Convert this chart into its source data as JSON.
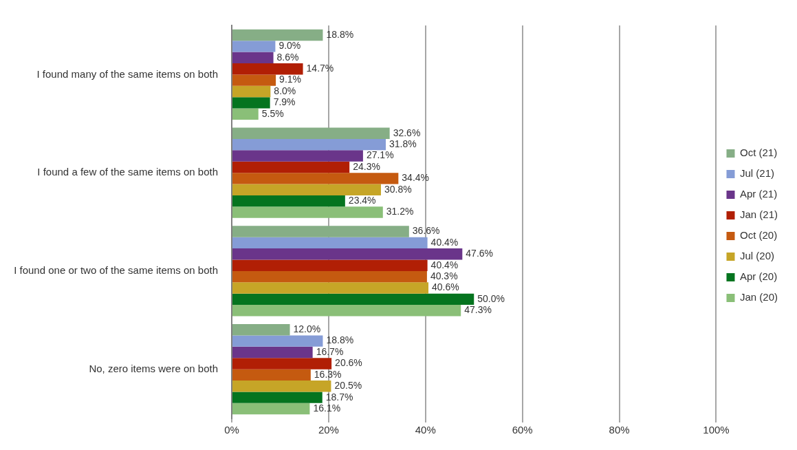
{
  "chart_data": {
    "type": "bar",
    "orientation": "horizontal",
    "categories": [
      "I found many of the same items on both",
      "I found a few of the same items on both",
      "I found one or two of the same items on both",
      "No, zero items were on both"
    ],
    "series": [
      {
        "name": "Oct (21)",
        "color": "#86ae86",
        "values": [
          18.8,
          32.6,
          36.6,
          12.0
        ],
        "value_labels": [
          "18.8%",
          "32.6%",
          "36.6%",
          "12.0%"
        ]
      },
      {
        "name": "Jul (21)",
        "color": "#859cd6",
        "values": [
          9.0,
          31.8,
          40.4,
          18.8
        ],
        "value_labels": [
          "9.0%",
          "31.8%",
          "40.4%",
          "18.8%"
        ]
      },
      {
        "name": "Apr (21)",
        "color": "#6a358a",
        "values": [
          8.6,
          27.1,
          47.6,
          16.7
        ],
        "value_labels": [
          "8.6%",
          "27.1%",
          "47.6%",
          "16.7%"
        ]
      },
      {
        "name": "Jan (21)",
        "color": "#b11f05",
        "values": [
          14.7,
          24.3,
          40.4,
          20.6
        ],
        "value_labels": [
          "14.7%",
          "24.3%",
          "40.4%",
          "20.6%"
        ]
      },
      {
        "name": "Oct (20)",
        "color": "#c55a10",
        "values": [
          9.1,
          34.4,
          40.3,
          16.3
        ],
        "value_labels": [
          "9.1%",
          "34.4%",
          "40.3%",
          "16.3%"
        ]
      },
      {
        "name": "Jul (20)",
        "color": "#c6a527",
        "values": [
          8.0,
          30.8,
          40.6,
          20.5
        ],
        "value_labels": [
          "8.0%",
          "30.8%",
          "40.6%",
          "20.5%"
        ]
      },
      {
        "name": "Apr (20)",
        "color": "#05741f",
        "values": [
          7.9,
          23.4,
          50.0,
          18.7
        ],
        "value_labels": [
          "7.9%",
          "23.4%",
          "50.0%",
          "18.7%"
        ]
      },
      {
        "name": "Jan (20)",
        "color": "#8abf78",
        "values": [
          5.5,
          31.2,
          47.3,
          16.1
        ],
        "value_labels": [
          "5.5%",
          "31.2%",
          "47.3%",
          "16.1%"
        ]
      }
    ],
    "xlim": [
      0,
      100
    ],
    "xticks": [
      {
        "value": 0,
        "label": "0%"
      },
      {
        "value": 20,
        "label": "20%"
      },
      {
        "value": 40,
        "label": "40%"
      },
      {
        "value": 60,
        "label": "60%"
      },
      {
        "value": 80,
        "label": "80%"
      },
      {
        "value": 100,
        "label": "100%"
      }
    ],
    "grid": "x",
    "legend": "right"
  }
}
